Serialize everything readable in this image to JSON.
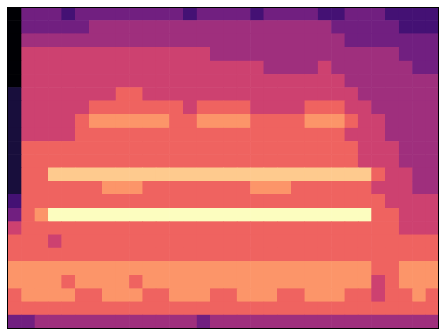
{
  "chart_data": {
    "type": "heatmap",
    "color": "magma",
    "tick_labels": false,
    "grid": false,
    "xlim": [
      0,
      32
    ],
    "ylim": [
      0,
      24
    ],
    "zlim": [
      0,
      9
    ],
    "cells": [
      [
        0,
        3,
        3,
        3,
        2,
        3,
        3,
        3,
        3,
        3,
        3,
        3,
        3,
        2,
        3,
        3,
        3,
        3,
        2,
        3,
        3,
        3,
        3,
        2,
        2,
        3,
        3,
        3,
        2,
        2,
        2,
        2
      ],
      [
        0,
        3,
        3,
        3,
        3,
        3,
        4,
        4,
        4,
        4,
        4,
        4,
        4,
        4,
        4,
        4,
        4,
        4,
        4,
        4,
        4,
        4,
        4,
        4,
        3,
        3,
        3,
        3,
        3,
        2,
        2,
        2
      ],
      [
        0,
        4,
        4,
        4,
        4,
        4,
        4,
        4,
        4,
        4,
        4,
        4,
        4,
        4,
        4,
        4,
        4,
        4,
        4,
        4,
        4,
        4,
        4,
        4,
        4,
        3,
        3,
        3,
        3,
        3,
        3,
        3
      ],
      [
        0,
        5,
        5,
        5,
        5,
        5,
        5,
        5,
        5,
        5,
        5,
        5,
        5,
        5,
        5,
        4,
        4,
        4,
        4,
        4,
        4,
        4,
        4,
        4,
        4,
        4,
        4,
        4,
        4,
        3,
        3,
        3
      ],
      [
        0,
        5,
        5,
        5,
        5,
        5,
        5,
        5,
        5,
        5,
        5,
        5,
        5,
        5,
        5,
        5,
        5,
        5,
        5,
        4,
        4,
        4,
        4,
        5,
        4,
        4,
        4,
        4,
        4,
        4,
        3,
        3
      ],
      [
        0,
        5,
        5,
        5,
        5,
        5,
        5,
        5,
        5,
        5,
        5,
        5,
        5,
        5,
        5,
        5,
        5,
        5,
        5,
        5,
        5,
        5,
        5,
        5,
        5,
        4,
        4,
        4,
        4,
        4,
        4,
        4
      ],
      [
        1,
        5,
        5,
        5,
        5,
        5,
        5,
        5,
        6,
        6,
        5,
        5,
        5,
        5,
        5,
        5,
        5,
        5,
        5,
        5,
        5,
        5,
        5,
        5,
        5,
        5,
        4,
        4,
        4,
        4,
        4,
        4
      ],
      [
        1,
        5,
        5,
        5,
        5,
        5,
        6,
        6,
        6,
        6,
        6,
        6,
        6,
        5,
        6,
        6,
        6,
        6,
        5,
        5,
        5,
        5,
        6,
        6,
        6,
        5,
        5,
        4,
        4,
        4,
        4,
        4
      ],
      [
        1,
        5,
        5,
        5,
        5,
        6,
        7,
        7,
        7,
        7,
        7,
        7,
        6,
        6,
        7,
        7,
        7,
        7,
        6,
        6,
        6,
        6,
        7,
        7,
        7,
        6,
        5,
        5,
        4,
        4,
        4,
        4
      ],
      [
        1,
        5,
        5,
        5,
        5,
        6,
        6,
        6,
        6,
        6,
        6,
        6,
        6,
        6,
        6,
        6,
        6,
        6,
        6,
        6,
        6,
        6,
        6,
        6,
        6,
        5,
        5,
        5,
        4,
        4,
        4,
        4
      ],
      [
        1,
        6,
        6,
        6,
        6,
        6,
        6,
        6,
        6,
        6,
        6,
        6,
        6,
        6,
        6,
        6,
        6,
        6,
        6,
        6,
        6,
        6,
        6,
        6,
        6,
        6,
        5,
        5,
        5,
        4,
        4,
        4
      ],
      [
        1,
        6,
        6,
        6,
        6,
        6,
        6,
        6,
        6,
        6,
        6,
        6,
        6,
        6,
        6,
        6,
        6,
        6,
        6,
        6,
        6,
        6,
        6,
        6,
        6,
        6,
        5,
        5,
        5,
        4,
        4,
        4
      ],
      [
        1,
        6,
        6,
        8,
        8,
        8,
        8,
        8,
        8,
        8,
        8,
        8,
        8,
        8,
        8,
        8,
        8,
        8,
        8,
        8,
        8,
        8,
        8,
        8,
        8,
        8,
        8,
        6,
        5,
        5,
        4,
        4
      ],
      [
        1,
        6,
        6,
        6,
        6,
        6,
        6,
        7,
        7,
        7,
        6,
        6,
        6,
        6,
        6,
        6,
        6,
        6,
        7,
        7,
        7,
        6,
        6,
        6,
        6,
        6,
        6,
        5,
        5,
        5,
        4,
        4
      ],
      [
        2,
        6,
        6,
        6,
        6,
        6,
        6,
        6,
        6,
        6,
        6,
        6,
        6,
        6,
        6,
        6,
        6,
        6,
        6,
        6,
        6,
        6,
        6,
        6,
        6,
        6,
        6,
        6,
        5,
        5,
        5,
        5
      ],
      [
        3,
        6,
        7,
        9,
        9,
        9,
        9,
        9,
        9,
        9,
        9,
        9,
        9,
        9,
        9,
        9,
        9,
        9,
        9,
        9,
        9,
        9,
        9,
        9,
        9,
        9,
        9,
        6,
        6,
        5,
        5,
        5
      ],
      [
        5,
        6,
        6,
        6,
        6,
        6,
        6,
        6,
        6,
        6,
        6,
        6,
        6,
        6,
        6,
        6,
        6,
        6,
        6,
        6,
        6,
        6,
        6,
        6,
        6,
        6,
        6,
        6,
        6,
        5,
        5,
        5
      ],
      [
        6,
        6,
        6,
        5,
        6,
        6,
        6,
        6,
        6,
        6,
        6,
        6,
        6,
        6,
        6,
        6,
        6,
        6,
        6,
        6,
        6,
        6,
        6,
        6,
        6,
        6,
        6,
        6,
        6,
        6,
        6,
        6
      ],
      [
        6,
        6,
        6,
        6,
        6,
        6,
        6,
        6,
        6,
        6,
        6,
        6,
        6,
        6,
        6,
        6,
        6,
        6,
        6,
        6,
        6,
        6,
        6,
        6,
        6,
        6,
        6,
        6,
        6,
        6,
        6,
        6
      ],
      [
        7,
        7,
        7,
        7,
        7,
        7,
        7,
        7,
        7,
        7,
        7,
        7,
        7,
        7,
        7,
        7,
        7,
        7,
        7,
        7,
        7,
        7,
        7,
        7,
        7,
        7,
        7,
        6,
        6,
        7,
        7,
        7
      ],
      [
        7,
        7,
        7,
        7,
        6,
        7,
        7,
        7,
        7,
        6,
        7,
        7,
        7,
        7,
        7,
        7,
        7,
        7,
        7,
        7,
        7,
        7,
        7,
        7,
        7,
        7,
        7,
        5,
        6,
        7,
        7,
        7
      ],
      [
        6,
        7,
        7,
        7,
        7,
        6,
        6,
        7,
        7,
        7,
        6,
        6,
        7,
        7,
        7,
        6,
        6,
        7,
        7,
        7,
        6,
        6,
        7,
        7,
        7,
        6,
        6,
        5,
        6,
        6,
        7,
        6
      ],
      [
        6,
        6,
        6,
        6,
        6,
        6,
        6,
        6,
        6,
        6,
        6,
        6,
        6,
        6,
        6,
        6,
        6,
        6,
        6,
        6,
        6,
        6,
        6,
        6,
        6,
        6,
        6,
        6,
        6,
        6,
        6,
        6
      ],
      [
        3,
        3,
        4,
        4,
        4,
        4,
        4,
        4,
        4,
        4,
        4,
        4,
        4,
        4,
        3,
        4,
        4,
        4,
        4,
        4,
        4,
        4,
        4,
        4,
        4,
        4,
        4,
        4,
        4,
        4,
        4,
        4
      ]
    ]
  }
}
